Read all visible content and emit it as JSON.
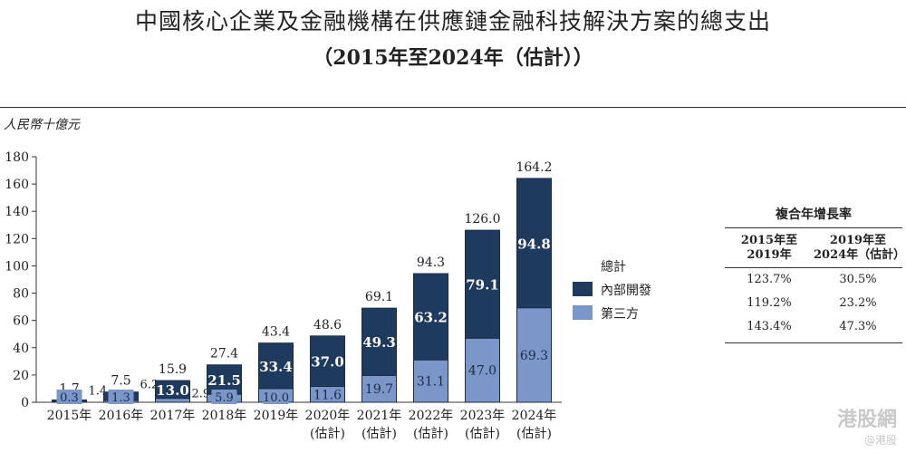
{
  "chart_data": {
    "type": "bar",
    "stacked": true,
    "title": "中國核心企業及金融機構在供應鏈金融科技解決方案的總支出",
    "subtitle": "（2015年至2024年（估計））",
    "ylabel": "人民幣十億元",
    "ylim": [
      0,
      180
    ],
    "yticks": [
      0,
      20,
      40,
      60,
      80,
      100,
      120,
      140,
      160,
      180
    ],
    "categories": [
      [
        "2015年"
      ],
      [
        "2016年"
      ],
      [
        "2017年"
      ],
      [
        "2018年"
      ],
      [
        "2019年"
      ],
      [
        "2020年",
        "(估計)"
      ],
      [
        "2021年",
        "(估計)"
      ],
      [
        "2022年",
        "(估計)"
      ],
      [
        "2023年",
        "(估計)"
      ],
      [
        "2024年",
        "(估計)"
      ]
    ],
    "series": [
      {
        "name": "第三方",
        "color": "#7b96c9",
        "values": [
          0.3,
          1.3,
          2.9,
          5.9,
          10.0,
          11.6,
          19.7,
          31.1,
          47.0,
          69.3
        ],
        "labels": [
          "0.3",
          "1.3",
          "2.9",
          "5.9",
          "10.0",
          "11.6",
          "19.7",
          "31.1",
          "47.0",
          "69.3"
        ]
      },
      {
        "name": "內部開發",
        "color": "#1f3a5f",
        "values": [
          1.4,
          6.2,
          13.0,
          21.5,
          33.4,
          37.0,
          49.3,
          63.2,
          79.1,
          94.8
        ],
        "labels": [
          "1.4",
          "6.2",
          "13.0",
          "21.5",
          "33.4",
          "37.0",
          "49.3",
          "63.2",
          "79.1",
          "94.8"
        ]
      }
    ],
    "totals": [
      1.7,
      7.5,
      15.9,
      27.4,
      43.4,
      48.6,
      69.1,
      94.3,
      126.0,
      164.2
    ],
    "total_labels": [
      "1.7",
      "7.5",
      "15.9",
      "27.4",
      "43.4",
      "48.6",
      "69.1",
      "94.3",
      "126.0",
      "164.2"
    ],
    "legend_title": "總計",
    "legend_position": "right",
    "grid": false
  },
  "cagr_table": {
    "title": "複合年增長率",
    "columns": [
      [
        "2015年至",
        "2019年"
      ],
      [
        "2019年至",
        "2024年（估計）"
      ]
    ],
    "rows": [
      [
        "123.7%",
        "30.5%"
      ],
      [
        "119.2%",
        "23.2%"
      ],
      [
        "143.4%",
        "47.3%"
      ]
    ]
  },
  "watermark": {
    "line1": "港股網",
    "line2": "@港股"
  }
}
